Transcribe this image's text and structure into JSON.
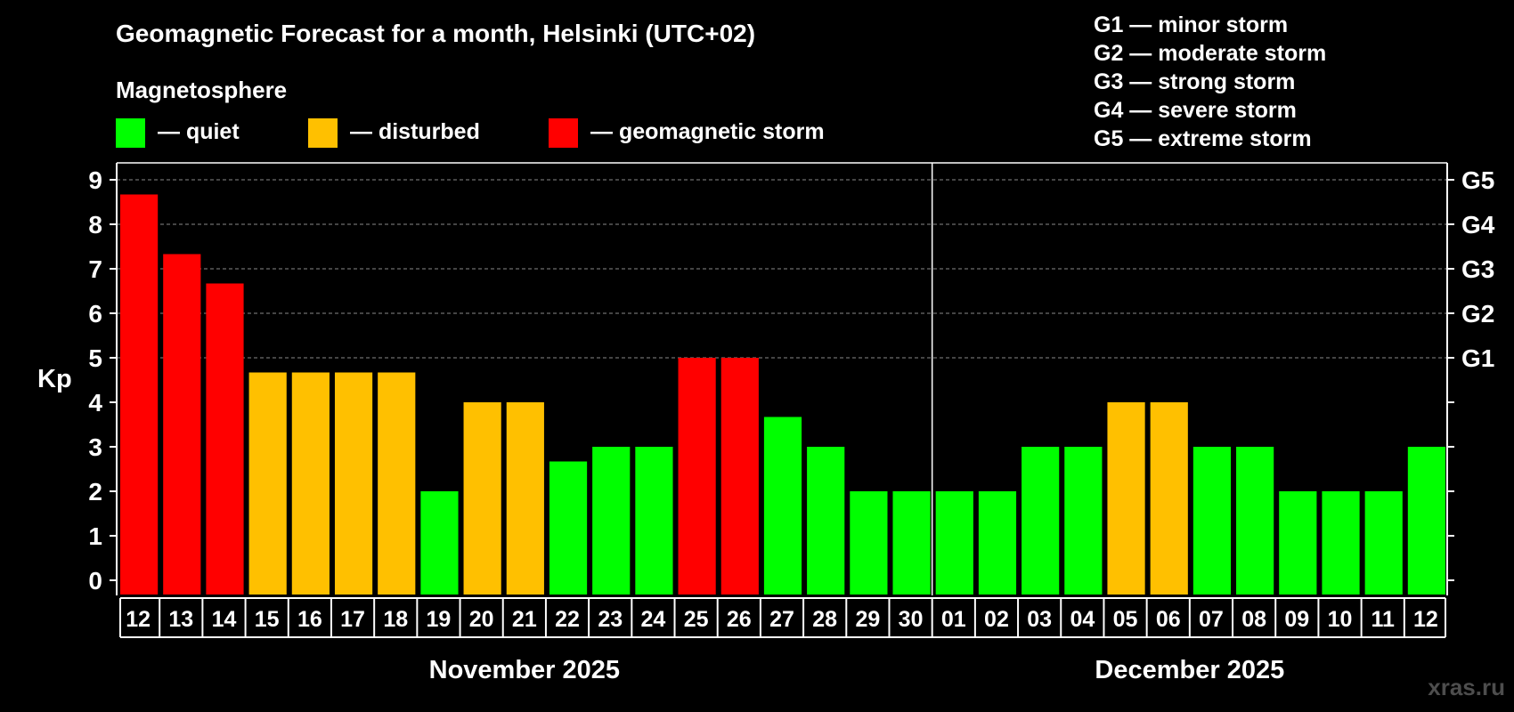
{
  "title": "Geomagnetic Forecast for a month, Helsinki (UTC+02)",
  "legend": {
    "title": "Magnetosphere",
    "items": [
      {
        "label": "— quiet",
        "color": "#00ff00"
      },
      {
        "label": "— disturbed",
        "color": "#ffc000"
      },
      {
        "label": "— geomagnetic storm",
        "color": "#ff0000"
      }
    ]
  },
  "storm_levels": [
    "G1 — minor storm",
    "G2 — moderate storm",
    "G3 — strong storm",
    "G4 — severe storm",
    "G5 — extreme storm"
  ],
  "watermark": "xras.ru",
  "chart_data": {
    "type": "bar",
    "ylabel": "Kp",
    "ylim": [
      0,
      9
    ],
    "yticks": [
      0,
      1,
      2,
      3,
      4,
      5,
      6,
      7,
      8,
      9
    ],
    "right_ticks": [
      {
        "value": 5,
        "label": "G1"
      },
      {
        "value": 6,
        "label": "G2"
      },
      {
        "value": 7,
        "label": "G3"
      },
      {
        "value": 8,
        "label": "G4"
      },
      {
        "value": 9,
        "label": "G5"
      }
    ],
    "grid": "dashed at Kp 5, 6, 7, 8, 9",
    "months": [
      {
        "label": "November 2025",
        "start_index": 0,
        "end_index": 18
      },
      {
        "label": "December 2025",
        "start_index": 19,
        "end_index": 30
      }
    ],
    "categories": [
      "12",
      "13",
      "14",
      "15",
      "16",
      "17",
      "18",
      "19",
      "20",
      "21",
      "22",
      "23",
      "24",
      "25",
      "26",
      "27",
      "28",
      "29",
      "30",
      "01",
      "02",
      "03",
      "04",
      "05",
      "06",
      "07",
      "08",
      "09",
      "10",
      "11",
      "12"
    ],
    "values": [
      8.67,
      7.33,
      6.67,
      4.67,
      4.67,
      4.67,
      4.67,
      2,
      4,
      4,
      2.67,
      3,
      3,
      5,
      5,
      3.67,
      3,
      2,
      2,
      2,
      2,
      3,
      3,
      4,
      4,
      3,
      3,
      2,
      2,
      2,
      3
    ],
    "colors": [
      "#ff0000",
      "#ff0000",
      "#ff0000",
      "#ffc000",
      "#ffc000",
      "#ffc000",
      "#ffc000",
      "#00ff00",
      "#ffc000",
      "#ffc000",
      "#00ff00",
      "#00ff00",
      "#00ff00",
      "#ff0000",
      "#ff0000",
      "#00ff00",
      "#00ff00",
      "#00ff00",
      "#00ff00",
      "#00ff00",
      "#00ff00",
      "#00ff00",
      "#00ff00",
      "#ffc000",
      "#ffc000",
      "#00ff00",
      "#00ff00",
      "#00ff00",
      "#00ff00",
      "#00ff00",
      "#00ff00"
    ]
  }
}
